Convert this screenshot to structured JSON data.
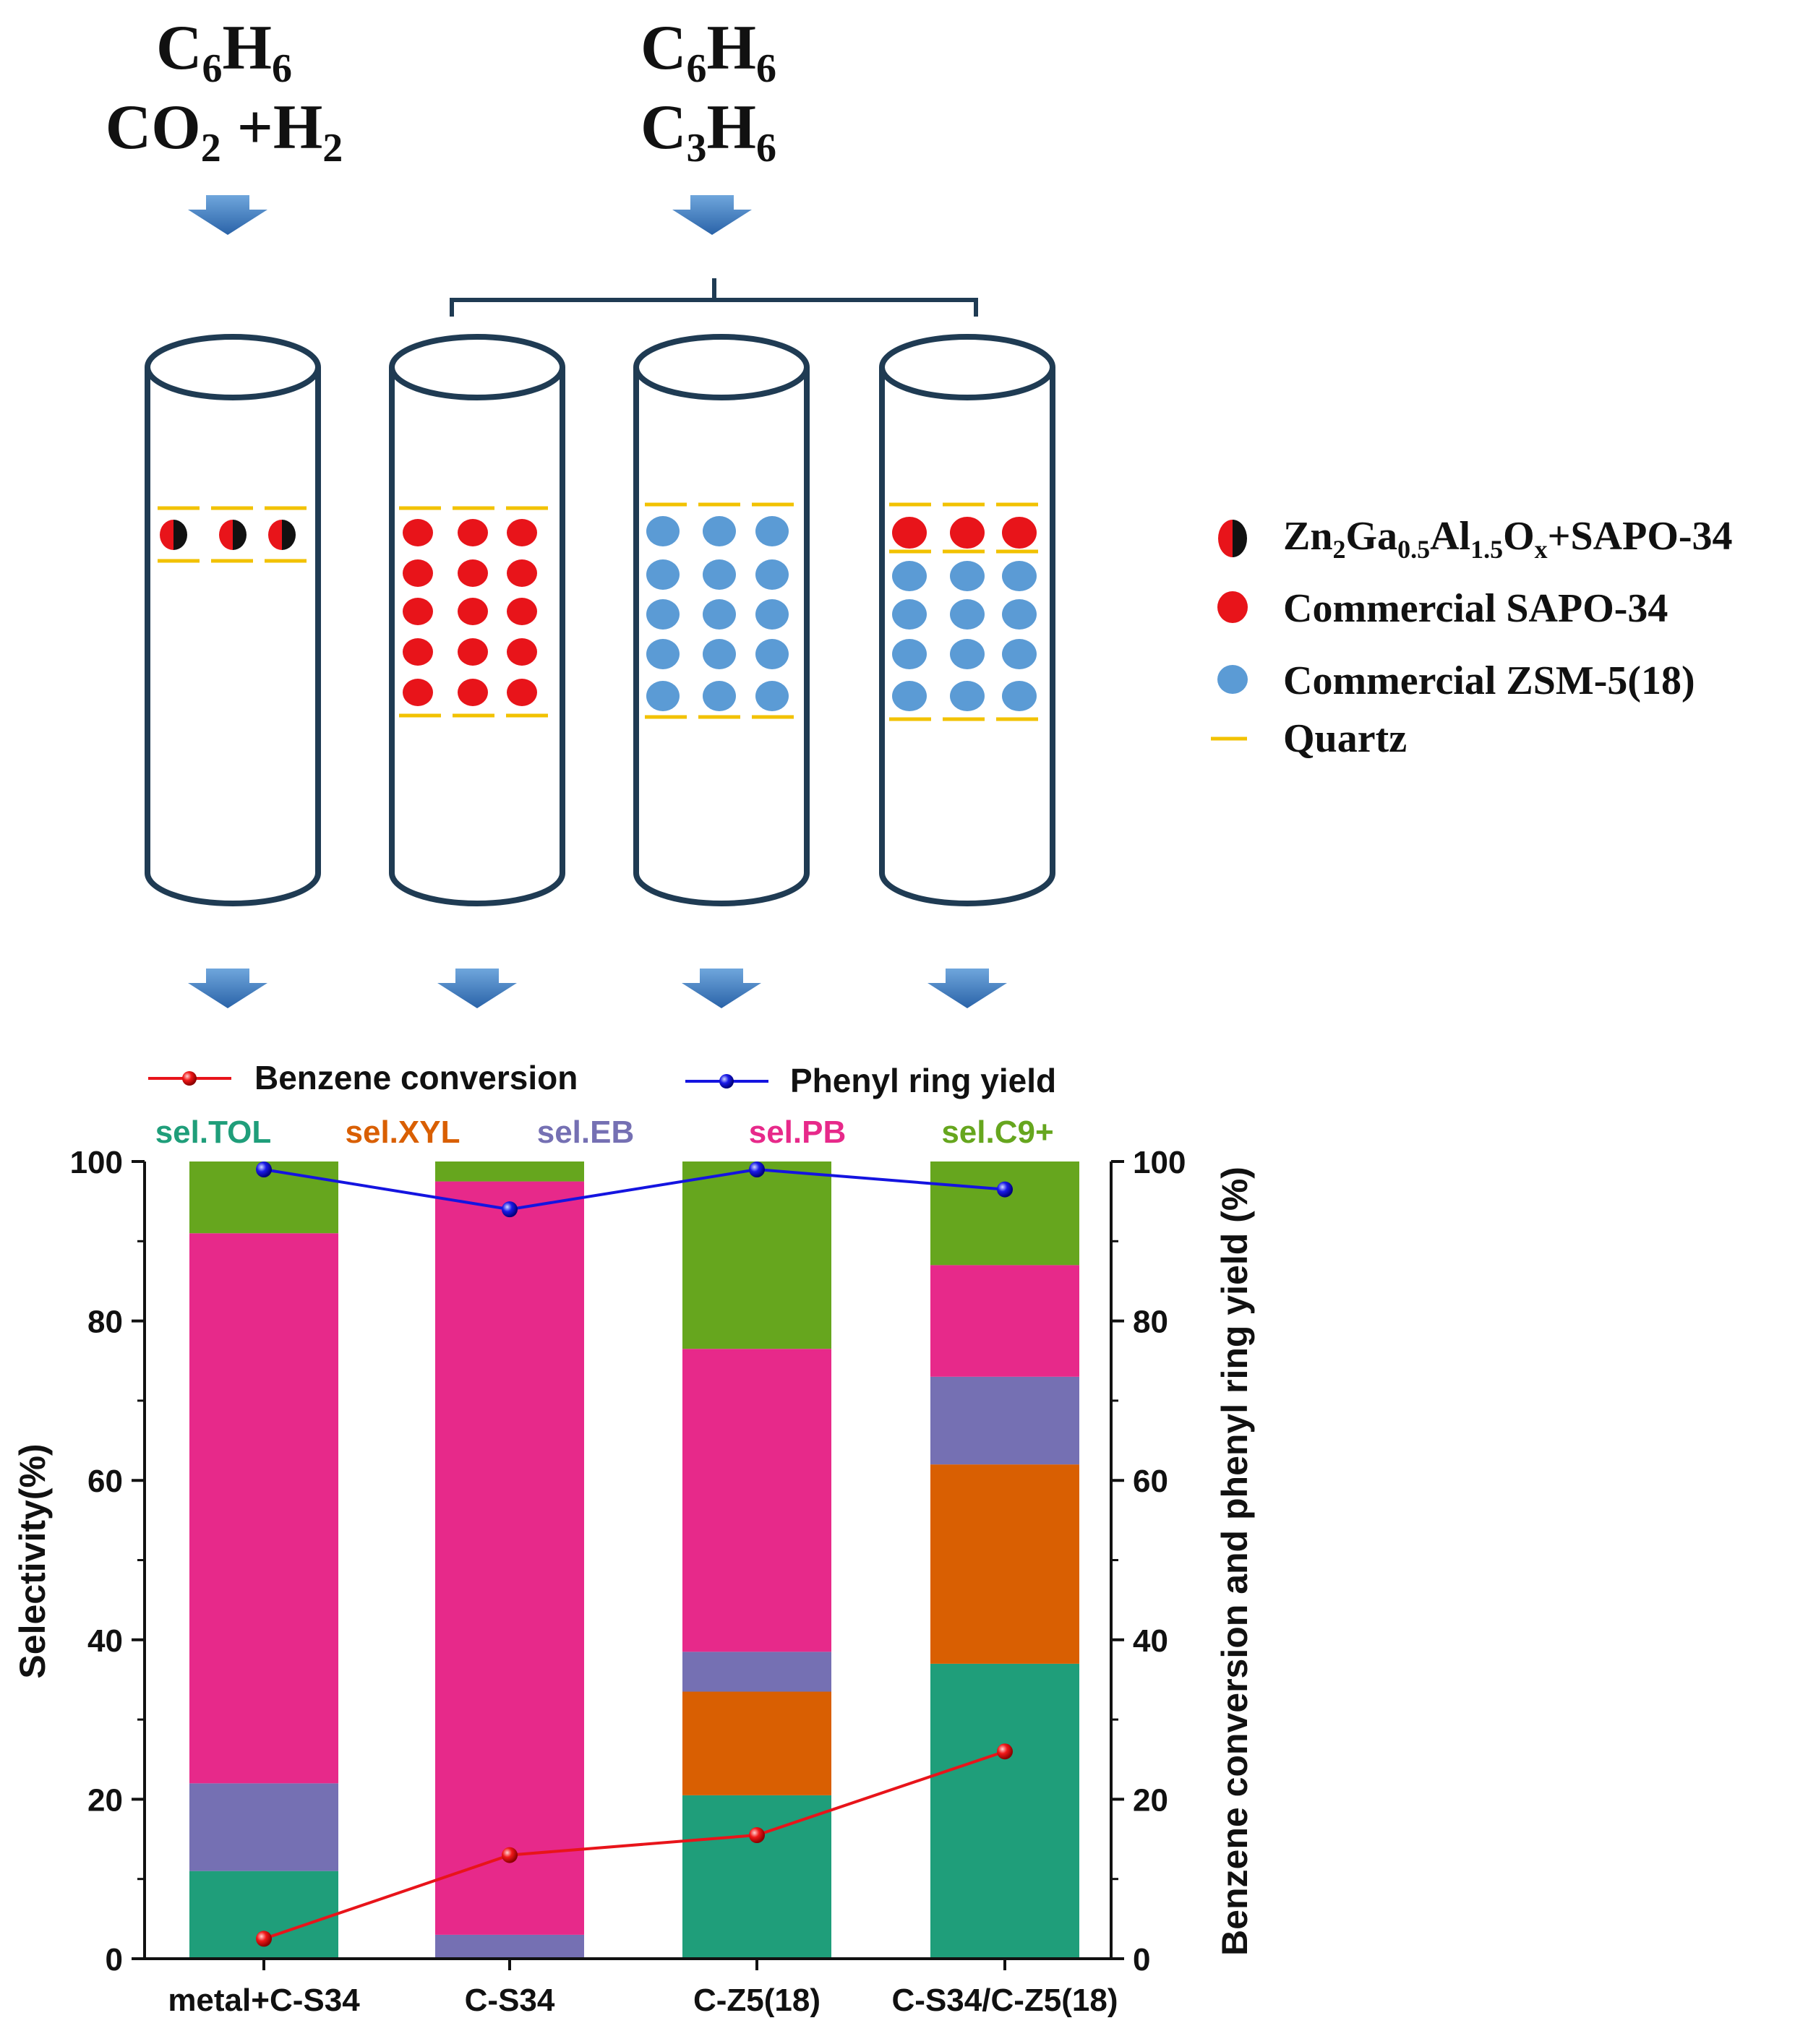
{
  "feeds": {
    "left": {
      "line1_base": "C",
      "line1_sub1": "6",
      "line1_el2": "H",
      "line1_sub2": "6",
      "line2_base": "CO",
      "line2_sub1": "2",
      "line2_rest": " +H",
      "line2_sub2": "2"
    },
    "right": {
      "line1_base": "C",
      "line1_sub1": "6",
      "line1_el2": "H",
      "line1_sub2": "6",
      "line2_base": "C",
      "line2_sub1": "3",
      "line2_el2": "H",
      "line2_sub2": "6"
    }
  },
  "legend_top": {
    "item1": {
      "p1": "Zn",
      "s1": "2",
      "p2": "Ga",
      "s2": "0.5",
      "p3": "Al",
      "s3": "1.5",
      "p4": "O",
      "s4": "x",
      "p5": "+SAPO-34"
    },
    "item2": "Commercial  SAPO-34",
    "item3": "Commercial  ZSM-5(18)",
    "item4": "Quartz"
  },
  "colors": {
    "tol": "#1f9e7a",
    "xyl": "#d95f02",
    "eb": "#7570b3",
    "pb": "#e7298a",
    "c9": "#66a61e",
    "conv": "#e8141a",
    "yield": "#1414e0",
    "sapo": "#e8141a",
    "zsm": "#5b9bd5",
    "quartz": "#f2c200",
    "tube": "#1f3b53",
    "arrow": "#3f7fc0"
  },
  "chart_data": {
    "type": "bar",
    "stacked": true,
    "categories": [
      "metal+C-S34",
      "C-S34",
      "C-Z5(18)",
      "C-S34/C-Z5(18)"
    ],
    "series": [
      {
        "name": "sel.TOL",
        "values": [
          11,
          0,
          20.5,
          37
        ]
      },
      {
        "name": "sel.XYL",
        "values": [
          0,
          0,
          13,
          25
        ]
      },
      {
        "name": "sel.EB",
        "values": [
          11,
          3,
          5,
          11
        ]
      },
      {
        "name": "sel.PB",
        "values": [
          69,
          94.5,
          38,
          14
        ]
      },
      {
        "name": "sel.C9+",
        "values": [
          9,
          2.5,
          23.5,
          13
        ]
      }
    ],
    "lines": [
      {
        "name": "Benzene conversion",
        "values": [
          2.5,
          13,
          15.5,
          26
        ]
      },
      {
        "name": "Phenyl ring yield",
        "values": [
          99,
          94,
          99,
          96.5
        ]
      }
    ],
    "ylabel_left": "Selectivity(%)",
    "ylabel_right": "Benzene conversion and phenyl ring yield (%)",
    "ylim": [
      0,
      100
    ],
    "yticks": [
      "0",
      "20",
      "40",
      "60",
      "80",
      "100"
    ]
  }
}
